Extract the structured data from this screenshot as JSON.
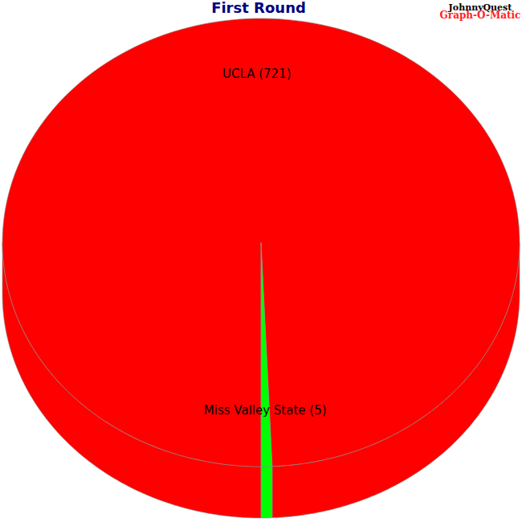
{
  "chart_data": {
    "type": "pie",
    "title": "First Round",
    "categories": [
      "UCLA",
      "Miss Valley State"
    ],
    "values": [
      721,
      5
    ],
    "value_labels": [
      "UCLA (721)",
      "Miss Valley State (5)"
    ],
    "data_labels": true,
    "colors": [
      "#ff0000",
      "#00ff00"
    ],
    "annotations": [
      "JohnnyQuest",
      "Graph-O-Matic"
    ]
  }
}
